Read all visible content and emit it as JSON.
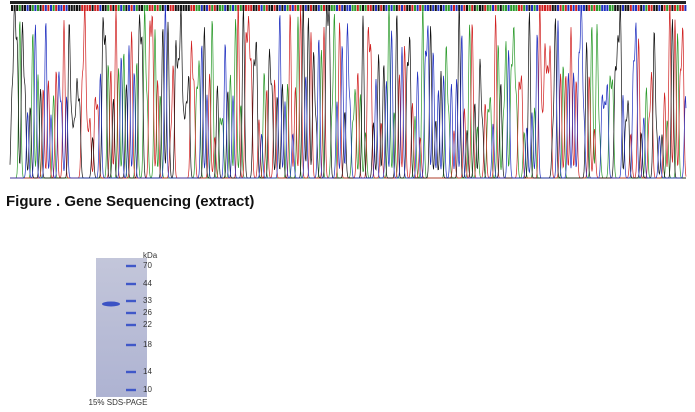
{
  "figure": {
    "caption": "Figure . Gene Sequencing (extract)"
  },
  "gel": {
    "unit": "kDa",
    "markers": [
      "70",
      "44",
      "33",
      "26",
      "22",
      "18",
      "14",
      "10"
    ],
    "caption": "15% SDS-PAGE"
  }
}
